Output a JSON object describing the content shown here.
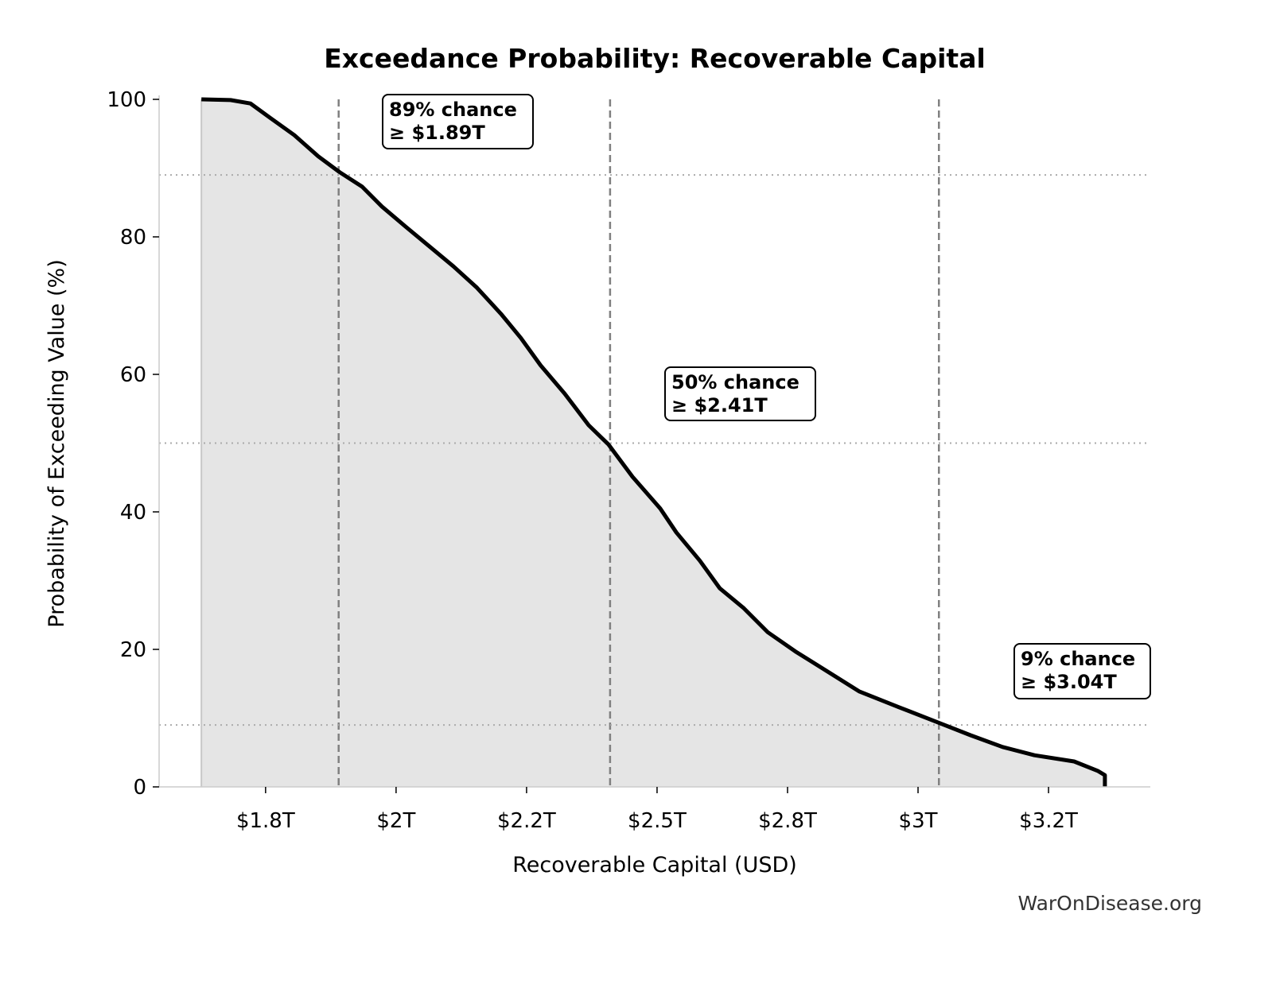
{
  "chart_data": {
    "type": "area",
    "title": "Exceedance Probability: Recoverable Capital",
    "xlabel": "Recoverable Capital (USD)",
    "ylabel": "Probability of Exceeding Value (%)",
    "xlim": [
      1.546,
      3.445
    ],
    "ylim": [
      0,
      100
    ],
    "x_ticks": [
      1.75,
      2.0,
      2.25,
      2.5,
      2.75,
      3.0,
      3.25
    ],
    "x_tick_labels": [
      "$1.8T",
      "$2T",
      "$2.2T",
      "$2.5T",
      "$2.8T",
      "$3T",
      "$3.2T"
    ],
    "y_ticks": [
      0,
      20,
      40,
      60,
      80,
      100
    ],
    "y_tick_labels": [
      "0",
      "20",
      "40",
      "60",
      "80",
      "100"
    ],
    "grid": false,
    "colors": {
      "line": "#000000",
      "fill": "#e5e5e5",
      "reference": "#808080"
    },
    "series": [
      {
        "x": [
          1.627,
          1.683,
          1.721,
          1.759,
          1.805,
          1.851,
          1.892,
          1.935,
          1.973,
          2.018,
          2.064,
          2.11,
          2.155,
          2.201,
          2.239,
          2.277,
          2.323,
          2.369,
          2.407,
          2.453,
          2.506,
          2.537,
          2.582,
          2.62,
          2.666,
          2.712,
          2.765,
          2.826,
          2.887,
          2.963,
          3.044,
          3.101,
          3.162,
          3.223,
          3.299,
          3.345,
          3.358,
          3.358
        ],
        "y": [
          100,
          99.9,
          99.4,
          97.3,
          94.8,
          91.7,
          89.4,
          87.3,
          84.4,
          81.5,
          78.6,
          75.7,
          72.6,
          68.8,
          65.3,
          61.3,
          57.2,
          52.6,
          49.8,
          45.1,
          40.5,
          37.0,
          32.9,
          28.9,
          26.0,
          22.5,
          19.7,
          16.8,
          13.9,
          11.6,
          9.2,
          7.5,
          5.8,
          4.6,
          3.7,
          2.3,
          1.7,
          0
        ]
      }
    ],
    "reference_lines": [
      {
        "x": 1.89,
        "y": 89
      },
      {
        "x": 2.41,
        "y": 50
      },
      {
        "x": 3.04,
        "y": 9
      }
    ],
    "annotations": [
      {
        "line1": "89% chance",
        "line2": "≥ $1.89T"
      },
      {
        "line1": "50% chance",
        "line2": "≥ $2.41T"
      },
      {
        "line1": "9% chance",
        "line2": "≥ $3.04T"
      }
    ]
  },
  "watermark": "WarOnDisease.org"
}
